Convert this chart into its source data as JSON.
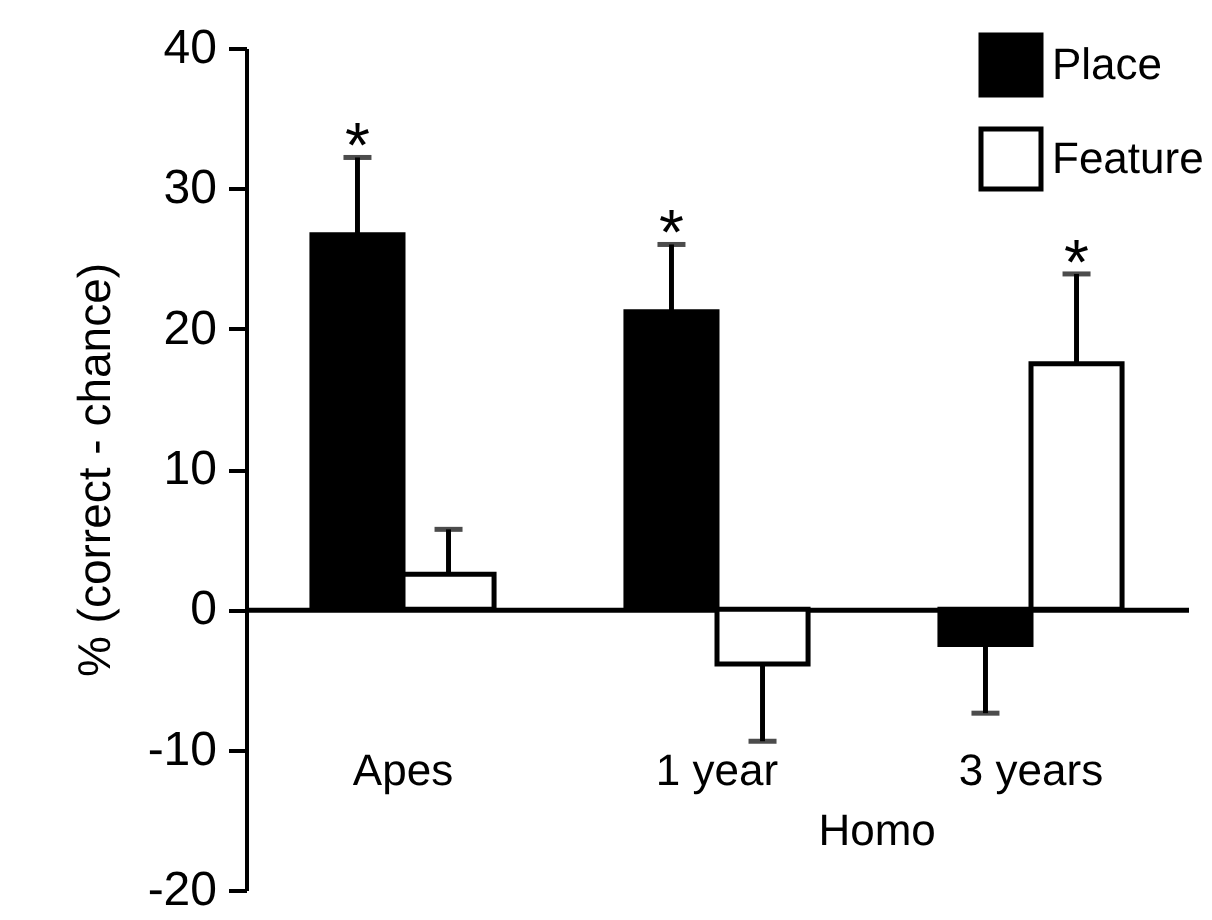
{
  "chart_data": {
    "type": "bar",
    "ylabel": "% (correct - chance)",
    "categories": [
      "Apes",
      "1 year",
      "3 years"
    ],
    "series": [
      {
        "name": "Place",
        "color": "#000000",
        "values": [
          26.7,
          21.2,
          -2.5
        ],
        "errors": [
          [
            26.7,
            32.2
          ],
          [
            21.2,
            26.0
          ],
          [
            -7.4,
            -2.5
          ]
        ]
      },
      {
        "name": "Feature",
        "color": "#ffffff",
        "values": [
          2.5,
          -3.9,
          17.5
        ],
        "errors": [
          [
            2.5,
            5.7
          ],
          [
            -9.4,
            -3.9
          ],
          [
            17.5,
            23.9
          ]
        ]
      }
    ],
    "ylim": [
      -20,
      40
    ],
    "yticks": [
      -20,
      -10,
      0,
      10,
      20,
      30,
      40
    ],
    "legend": "top right",
    "annotations": [
      {
        "text": "*",
        "x": "Apes",
        "y": 26.7
      },
      {
        "text": "*",
        "x": "1 year",
        "y": 21.2
      },
      {
        "text": "*",
        "x": "3 years",
        "y": 17.5
      },
      "Homo"
    ]
  }
}
